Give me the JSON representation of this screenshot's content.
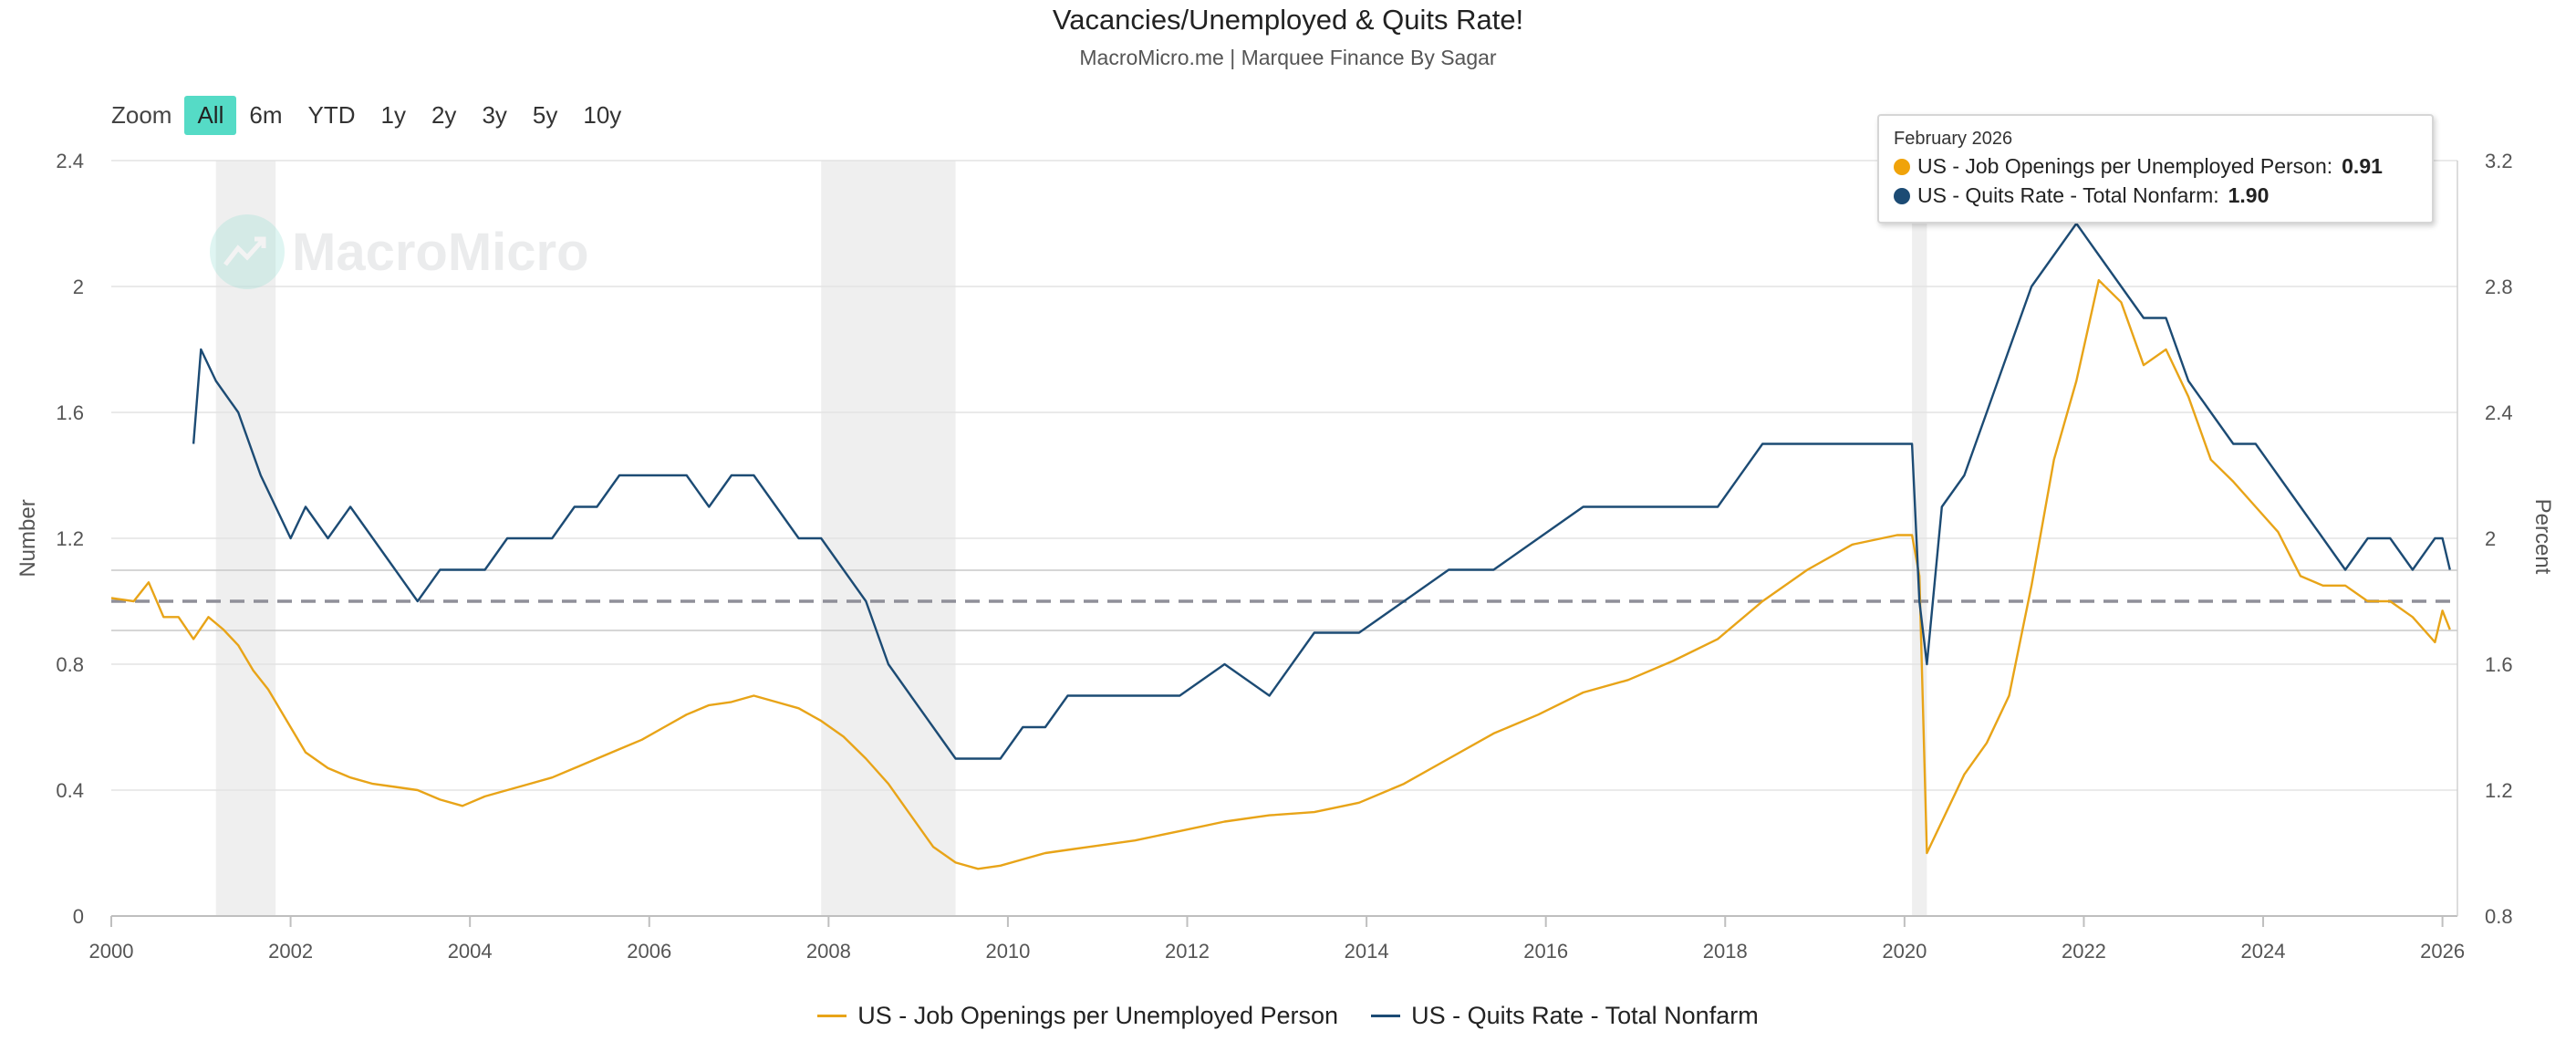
{
  "header": {
    "title": "Vacancies/Unemployed & Quits Rate!",
    "subtitle": "MacroMicro.me | Marquee Finance By Sagar"
  },
  "zoom": {
    "label": "Zoom",
    "buttons": [
      "All",
      "6m",
      "YTD",
      "1y",
      "2y",
      "3y",
      "5y",
      "10y"
    ],
    "active": "All"
  },
  "watermark": {
    "text": "MacroMicro",
    "icon": "macromicro-logo-icon"
  },
  "tooltip": {
    "date": "February 2026",
    "rows": [
      {
        "label": "US - Job Openings per Unemployed Person:",
        "value": "0.91",
        "color": "#f0a30a"
      },
      {
        "label": "US - Quits Rate - Total Nonfarm:",
        "value": "1.90",
        "color": "#1c4b74"
      }
    ]
  },
  "legend": [
    {
      "label": "US - Job Openings per Unemployed Person",
      "color": "#e8a418"
    },
    {
      "label": "US - Quits Rate - Total Nonfarm",
      "color": "#1c4b74"
    }
  ],
  "chart_data": {
    "type": "line",
    "title": "Vacancies/Unemployed & Quits Rate!",
    "subtitle": "MacroMicro.me | Marquee Finance By Sagar",
    "x_ticks": [
      "2000",
      "2002",
      "2004",
      "2006",
      "2008",
      "2010",
      "2012",
      "2014",
      "2016",
      "2018",
      "2020",
      "2022",
      "2024",
      "2026"
    ],
    "xlim": [
      "2000-01",
      "2026-03"
    ],
    "y_left": {
      "label": "Number",
      "lim": [
        0,
        2.4
      ],
      "ticks": [
        "0",
        "0.4",
        "0.8",
        "1.2",
        "1.6",
        "2",
        "2.4"
      ]
    },
    "y_right": {
      "label": "Percent",
      "lim": [
        0.8,
        3.2
      ],
      "ticks": [
        "0.8",
        "1.2",
        "1.6",
        "2",
        "2.4",
        "2.8",
        "3.2"
      ]
    },
    "grid": true,
    "legend_position": "bottom",
    "reference_line": {
      "axis": "left",
      "value": 1.0,
      "style": "dashed"
    },
    "recessions": [
      [
        "2001-03",
        "2001-11"
      ],
      [
        "2007-12",
        "2009-06"
      ],
      [
        "2020-02",
        "2020-04"
      ]
    ],
    "series": [
      {
        "name": "US - Job Openings per Unemployed Person",
        "axis": "left",
        "color": "#e8a418",
        "points": [
          [
            "2000-01",
            1.01
          ],
          [
            "2000-04",
            1.0
          ],
          [
            "2000-06",
            1.06
          ],
          [
            "2000-08",
            0.95
          ],
          [
            "2000-10",
            0.95
          ],
          [
            "2000-12",
            0.88
          ],
          [
            "2001-02",
            0.95
          ],
          [
            "2001-04",
            0.91
          ],
          [
            "2001-06",
            0.86
          ],
          [
            "2001-08",
            0.78
          ],
          [
            "2001-10",
            0.72
          ],
          [
            "2001-12",
            0.64
          ],
          [
            "2002-03",
            0.52
          ],
          [
            "2002-06",
            0.47
          ],
          [
            "2002-09",
            0.44
          ],
          [
            "2002-12",
            0.42
          ],
          [
            "2003-03",
            0.41
          ],
          [
            "2003-06",
            0.4
          ],
          [
            "2003-09",
            0.37
          ],
          [
            "2003-12",
            0.35
          ],
          [
            "2004-03",
            0.38
          ],
          [
            "2004-06",
            0.4
          ],
          [
            "2004-09",
            0.42
          ],
          [
            "2004-12",
            0.44
          ],
          [
            "2005-03",
            0.47
          ],
          [
            "2005-06",
            0.5
          ],
          [
            "2005-09",
            0.53
          ],
          [
            "2005-12",
            0.56
          ],
          [
            "2006-03",
            0.6
          ],
          [
            "2006-06",
            0.64
          ],
          [
            "2006-09",
            0.67
          ],
          [
            "2006-12",
            0.68
          ],
          [
            "2007-03",
            0.7
          ],
          [
            "2007-06",
            0.68
          ],
          [
            "2007-09",
            0.66
          ],
          [
            "2007-12",
            0.62
          ],
          [
            "2008-03",
            0.57
          ],
          [
            "2008-06",
            0.5
          ],
          [
            "2008-09",
            0.42
          ],
          [
            "2008-12",
            0.32
          ],
          [
            "2009-03",
            0.22
          ],
          [
            "2009-06",
            0.17
          ],
          [
            "2009-09",
            0.15
          ],
          [
            "2009-12",
            0.16
          ],
          [
            "2010-03",
            0.18
          ],
          [
            "2010-06",
            0.2
          ],
          [
            "2010-09",
            0.21
          ],
          [
            "2010-12",
            0.22
          ],
          [
            "2011-06",
            0.24
          ],
          [
            "2011-12",
            0.27
          ],
          [
            "2012-06",
            0.3
          ],
          [
            "2012-12",
            0.32
          ],
          [
            "2013-06",
            0.33
          ],
          [
            "2013-12",
            0.36
          ],
          [
            "2014-06",
            0.42
          ],
          [
            "2014-12",
            0.5
          ],
          [
            "2015-06",
            0.58
          ],
          [
            "2015-12",
            0.64
          ],
          [
            "2016-06",
            0.71
          ],
          [
            "2016-12",
            0.75
          ],
          [
            "2017-06",
            0.81
          ],
          [
            "2017-12",
            0.88
          ],
          [
            "2018-06",
            1.0
          ],
          [
            "2018-12",
            1.1
          ],
          [
            "2019-06",
            1.18
          ],
          [
            "2019-12",
            1.21
          ],
          [
            "2020-02",
            1.21
          ],
          [
            "2020-03",
            1.08
          ],
          [
            "2020-04",
            0.2
          ],
          [
            "2020-06",
            0.3
          ],
          [
            "2020-09",
            0.45
          ],
          [
            "2020-12",
            0.55
          ],
          [
            "2021-03",
            0.7
          ],
          [
            "2021-06",
            1.05
          ],
          [
            "2021-09",
            1.45
          ],
          [
            "2021-12",
            1.7
          ],
          [
            "2022-03",
            2.02
          ],
          [
            "2022-06",
            1.95
          ],
          [
            "2022-09",
            1.75
          ],
          [
            "2022-12",
            1.8
          ],
          [
            "2023-03",
            1.65
          ],
          [
            "2023-06",
            1.45
          ],
          [
            "2023-09",
            1.38
          ],
          [
            "2023-12",
            1.3
          ],
          [
            "2024-03",
            1.22
          ],
          [
            "2024-06",
            1.08
          ],
          [
            "2024-09",
            1.05
          ],
          [
            "2024-12",
            1.05
          ],
          [
            "2025-03",
            1.0
          ],
          [
            "2025-06",
            1.0
          ],
          [
            "2025-09",
            0.95
          ],
          [
            "2025-12",
            0.87
          ],
          [
            "2026-01",
            0.97
          ],
          [
            "2026-02",
            0.91
          ]
        ]
      },
      {
        "name": "US - Quits Rate - Total Nonfarm",
        "axis": "right",
        "color": "#1c4b74",
        "points": [
          [
            "2000-12",
            2.3
          ],
          [
            "2001-01",
            2.6
          ],
          [
            "2001-03",
            2.5
          ],
          [
            "2001-06",
            2.4
          ],
          [
            "2001-09",
            2.2
          ],
          [
            "2001-11",
            2.1
          ],
          [
            "2002-01",
            2.0
          ],
          [
            "2002-03",
            2.1
          ],
          [
            "2002-06",
            2.0
          ],
          [
            "2002-09",
            2.1
          ],
          [
            "2002-12",
            2.0
          ],
          [
            "2003-03",
            1.9
          ],
          [
            "2003-06",
            1.8
          ],
          [
            "2003-09",
            1.9
          ],
          [
            "2003-12",
            1.9
          ],
          [
            "2004-03",
            1.9
          ],
          [
            "2004-06",
            2.0
          ],
          [
            "2004-09",
            2.0
          ],
          [
            "2004-12",
            2.0
          ],
          [
            "2005-03",
            2.1
          ],
          [
            "2005-06",
            2.1
          ],
          [
            "2005-09",
            2.2
          ],
          [
            "2005-12",
            2.2
          ],
          [
            "2006-03",
            2.2
          ],
          [
            "2006-06",
            2.2
          ],
          [
            "2006-09",
            2.1
          ],
          [
            "2006-12",
            2.2
          ],
          [
            "2007-03",
            2.2
          ],
          [
            "2007-06",
            2.1
          ],
          [
            "2007-09",
            2.0
          ],
          [
            "2007-12",
            2.0
          ],
          [
            "2008-03",
            1.9
          ],
          [
            "2008-06",
            1.8
          ],
          [
            "2008-09",
            1.6
          ],
          [
            "2008-12",
            1.5
          ],
          [
            "2009-03",
            1.4
          ],
          [
            "2009-06",
            1.3
          ],
          [
            "2009-09",
            1.3
          ],
          [
            "2009-12",
            1.3
          ],
          [
            "2010-03",
            1.4
          ],
          [
            "2010-06",
            1.4
          ],
          [
            "2010-09",
            1.5
          ],
          [
            "2010-12",
            1.5
          ],
          [
            "2011-06",
            1.5
          ],
          [
            "2011-12",
            1.5
          ],
          [
            "2012-06",
            1.6
          ],
          [
            "2012-12",
            1.5
          ],
          [
            "2013-06",
            1.7
          ],
          [
            "2013-12",
            1.7
          ],
          [
            "2014-06",
            1.8
          ],
          [
            "2014-12",
            1.9
          ],
          [
            "2015-06",
            1.9
          ],
          [
            "2015-12",
            2.0
          ],
          [
            "2016-06",
            2.1
          ],
          [
            "2016-12",
            2.1
          ],
          [
            "2017-06",
            2.1
          ],
          [
            "2017-12",
            2.1
          ],
          [
            "2018-06",
            2.3
          ],
          [
            "2018-12",
            2.3
          ],
          [
            "2019-06",
            2.3
          ],
          [
            "2019-12",
            2.3
          ],
          [
            "2020-02",
            2.3
          ],
          [
            "2020-03",
            1.8
          ],
          [
            "2020-04",
            1.6
          ],
          [
            "2020-06",
            2.1
          ],
          [
            "2020-09",
            2.2
          ],
          [
            "2020-12",
            2.4
          ],
          [
            "2021-03",
            2.6
          ],
          [
            "2021-06",
            2.8
          ],
          [
            "2021-09",
            2.9
          ],
          [
            "2021-12",
            3.0
          ],
          [
            "2022-03",
            2.9
          ],
          [
            "2022-06",
            2.8
          ],
          [
            "2022-09",
            2.7
          ],
          [
            "2022-12",
            2.7
          ],
          [
            "2023-03",
            2.5
          ],
          [
            "2023-06",
            2.4
          ],
          [
            "2023-09",
            2.3
          ],
          [
            "2023-12",
            2.3
          ],
          [
            "2024-03",
            2.2
          ],
          [
            "2024-06",
            2.1
          ],
          [
            "2024-09",
            2.0
          ],
          [
            "2024-12",
            1.9
          ],
          [
            "2025-03",
            2.0
          ],
          [
            "2025-06",
            2.0
          ],
          [
            "2025-09",
            1.9
          ],
          [
            "2025-12",
            2.0
          ],
          [
            "2026-01",
            2.0
          ],
          [
            "2026-02",
            1.9
          ]
        ]
      }
    ]
  }
}
